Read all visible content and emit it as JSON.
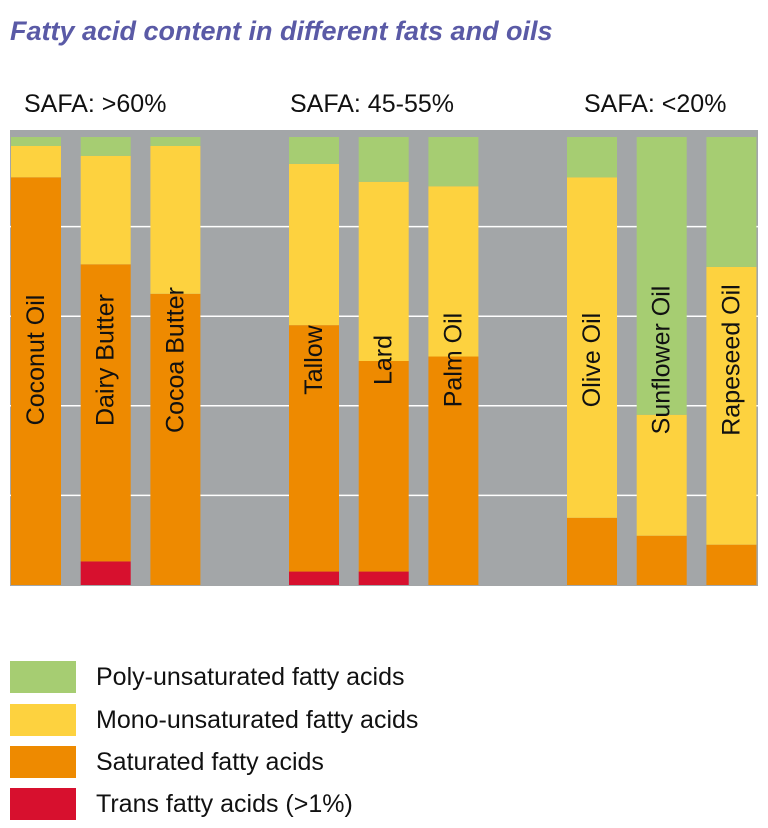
{
  "chart_data": {
    "type": "bar",
    "stacked": true,
    "orientation": "vertical",
    "title": "Fatty acid content in different fats and oils",
    "groups": [
      "SAFA: >60%",
      "SAFA: 45-55%",
      "SAFA: <20%"
    ],
    "categories": [
      "Coconut Oil",
      "Dairy Butter",
      "Cocoa Butter",
      "Tallow",
      "Lard",
      "Palm Oil",
      "Olive Oil",
      "Sunflower Oil",
      "Rapeseed Oil"
    ],
    "category_group": [
      0,
      0,
      0,
      1,
      1,
      1,
      2,
      2,
      2
    ],
    "series": [
      {
        "name": "Trans fatty acids (>1%)",
        "key": "trans",
        "color": "#d7102e",
        "values": [
          0,
          5,
          0,
          3,
          3,
          0,
          0,
          0,
          0
        ]
      },
      {
        "name": "Saturated fatty acids",
        "key": "sat",
        "color": "#ee8a00",
        "values": [
          91,
          63,
          65,
          55,
          47,
          51,
          15,
          11,
          9
        ]
      },
      {
        "name": "Mono-unsaturated fatty acids",
        "key": "mono",
        "color": "#fdd23f",
        "values": [
          7,
          23,
          33,
          36,
          40,
          38,
          76,
          27,
          62
        ]
      },
      {
        "name": "Poly-unsaturated fatty acids",
        "key": "poly",
        "color": "#a6cd72",
        "values": [
          2,
          4,
          2,
          6,
          10,
          11,
          9,
          62,
          29
        ]
      }
    ],
    "ylim": [
      0,
      100
    ],
    "grid": true,
    "legend_position": "bottom-left",
    "background_color": "#a3a6a8",
    "gridline_color": "#ffffff"
  },
  "legend_order": [
    3,
    2,
    1,
    0
  ]
}
